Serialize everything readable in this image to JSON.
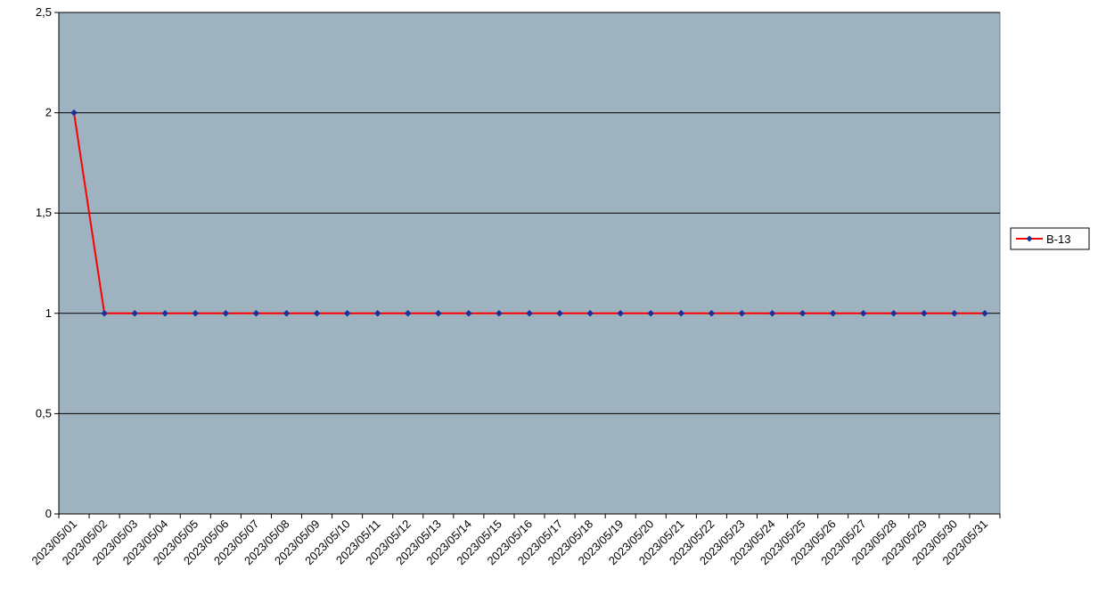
{
  "chart_data": {
    "type": "line",
    "x": [
      "2023/05/01",
      "2023/05/02",
      "2023/05/03",
      "2023/05/04",
      "2023/05/05",
      "2023/05/06",
      "2023/05/07",
      "2023/05/08",
      "2023/05/09",
      "2023/05/10",
      "2023/05/11",
      "2023/05/12",
      "2023/05/13",
      "2023/05/14",
      "2023/05/15",
      "2023/05/16",
      "2023/05/17",
      "2023/05/18",
      "2023/05/19",
      "2023/05/20",
      "2023/05/21",
      "2023/05/22",
      "2023/05/23",
      "2023/05/24",
      "2023/05/25",
      "2023/05/26",
      "2023/05/27",
      "2023/05/28",
      "2023/05/29",
      "2023/05/30",
      "2023/05/31"
    ],
    "series": [
      {
        "name": "B-13",
        "color": "#ff0000",
        "marker_color": "#1f2f99",
        "values": [
          2,
          1,
          1,
          1,
          1,
          1,
          1,
          1,
          1,
          1,
          1,
          1,
          1,
          1,
          1,
          1,
          1,
          1,
          1,
          1,
          1,
          1,
          1,
          1,
          1,
          1,
          1,
          1,
          1,
          1,
          1
        ]
      }
    ],
    "ylim": [
      0,
      2.5
    ],
    "yticks": [
      0,
      0.5,
      1,
      1.5,
      2,
      2.5
    ],
    "ytick_labels": [
      "0",
      "0,5",
      "1",
      "1,5",
      "2",
      "2,5"
    ],
    "grid": true,
    "legend_position": "right",
    "plot_background": "#9eb2c0"
  }
}
